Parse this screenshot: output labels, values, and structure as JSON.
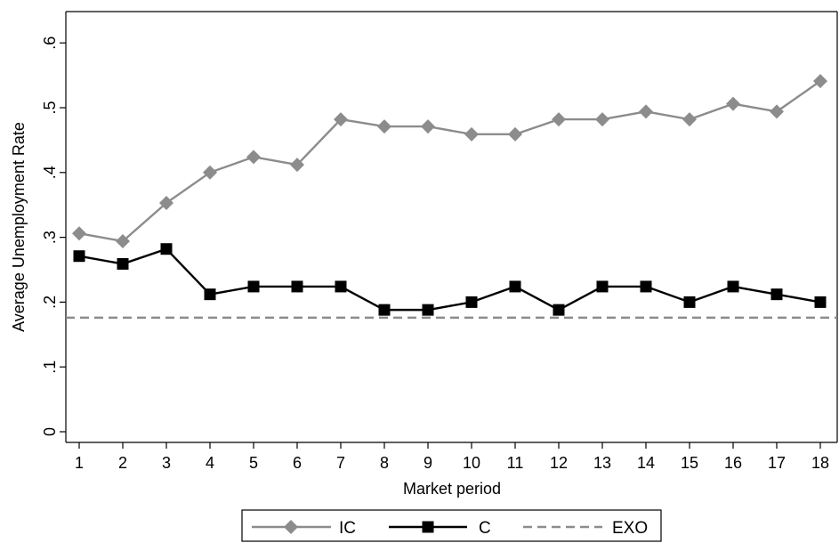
{
  "chart_data": {
    "type": "line",
    "title": "",
    "xlabel": "Market period",
    "ylabel": "Average Unemployment Rate",
    "x": [
      1,
      2,
      3,
      4,
      5,
      6,
      7,
      8,
      9,
      10,
      11,
      12,
      13,
      14,
      15,
      16,
      17,
      18
    ],
    "x_tick_labels": [
      "1",
      "2",
      "3",
      "4",
      "5",
      "6",
      "7",
      "8",
      "9",
      "10",
      "11",
      "12",
      "13",
      "14",
      "15",
      "16",
      "17",
      "18"
    ],
    "y_ticks": [
      0,
      0.1,
      0.2,
      0.3,
      0.4,
      0.5,
      0.6
    ],
    "y_tick_labels": [
      "0",
      ".1",
      ".2",
      ".3",
      ".4",
      ".5",
      ".6"
    ],
    "xlim": [
      1,
      18
    ],
    "ylim": [
      0,
      0.65
    ],
    "grid": false,
    "legend": {
      "position": "bottom-center"
    },
    "series": [
      {
        "name": "IC",
        "color": "#8c8c8c",
        "marker": "diamond",
        "line_style": "solid",
        "values": [
          0.306,
          0.294,
          0.353,
          0.4,
          0.424,
          0.412,
          0.482,
          0.471,
          0.471,
          0.459,
          0.459,
          0.482,
          0.482,
          0.494,
          0.482,
          0.506,
          0.494,
          0.541
        ]
      },
      {
        "name": "C",
        "color": "#000000",
        "marker": "square",
        "line_style": "solid",
        "values": [
          0.271,
          0.259,
          0.282,
          0.212,
          0.224,
          0.224,
          0.224,
          0.188,
          0.188,
          0.2,
          0.224,
          0.188,
          0.224,
          0.224,
          0.2,
          0.224,
          0.212,
          0.2
        ]
      },
      {
        "name": "EXO",
        "color": "#8c8c8c",
        "marker": "none",
        "line_style": "dashed",
        "values": [
          0.176,
          0.176,
          0.176,
          0.176,
          0.176,
          0.176,
          0.176,
          0.176,
          0.176,
          0.176,
          0.176,
          0.176,
          0.176,
          0.176,
          0.176,
          0.176,
          0.176,
          0.176
        ]
      }
    ]
  }
}
